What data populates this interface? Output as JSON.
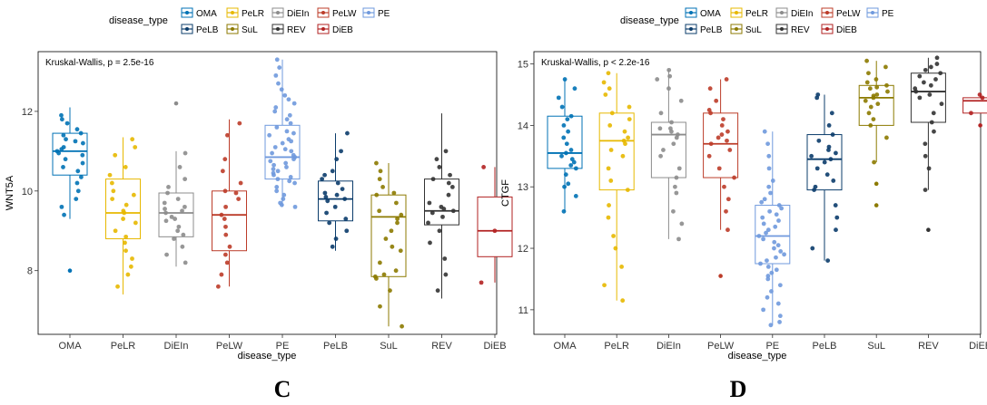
{
  "colors": {
    "OMA": "#0072B5",
    "PeLR": "#E7B800",
    "DiEIn": "#8C8C8C",
    "PeLW": "#BC3C29",
    "PE": "#6F99DD",
    "PeLB": "#0B3C6B",
    "SuL": "#8C7A00",
    "REV": "#333333",
    "DiEB": "#B22222"
  },
  "chart_data": [
    {
      "type": "box",
      "panel_label": "C",
      "title": "",
      "xlabel": "disease_type",
      "ylabel": "WNT5A",
      "ylim": [
        6.4,
        13.5
      ],
      "yticks": [
        8,
        10,
        12
      ],
      "annotation": "Kruskal-Wallis, p = 2.5e-16",
      "legend_title": "disease_type",
      "legend_position": "top",
      "categories": [
        "OMA",
        "PeLR",
        "DiEIn",
        "PeLW",
        "PE",
        "PeLB",
        "SuL",
        "REV",
        "DiEB"
      ],
      "boxes": [
        {
          "category": "OMA",
          "min": 9.3,
          "q1": 10.4,
          "median": 11.0,
          "q3": 11.45,
          "max": 12.1
        },
        {
          "category": "PeLR",
          "min": 7.4,
          "q1": 8.8,
          "median": 9.45,
          "q3": 10.3,
          "max": 11.35
        },
        {
          "category": "DiEIn",
          "min": 8.1,
          "q1": 8.85,
          "median": 9.45,
          "q3": 9.95,
          "max": 11.0
        },
        {
          "category": "PeLW",
          "min": 7.6,
          "q1": 8.5,
          "median": 9.4,
          "q3": 10.0,
          "max": 11.8
        },
        {
          "category": "PE",
          "min": 9.6,
          "q1": 10.3,
          "median": 10.85,
          "q3": 11.65,
          "max": 13.3
        },
        {
          "category": "PeLB",
          "min": 8.5,
          "q1": 9.25,
          "median": 9.8,
          "q3": 10.25,
          "max": 11.45
        },
        {
          "category": "SuL",
          "min": 6.6,
          "q1": 7.85,
          "median": 9.35,
          "q3": 9.9,
          "max": 10.7
        },
        {
          "category": "REV",
          "min": 7.3,
          "q1": 9.15,
          "median": 9.5,
          "q3": 10.3,
          "max": 11.95
        },
        {
          "category": "DiEB",
          "min": 7.7,
          "q1": 8.35,
          "median": 9.0,
          "q3": 9.85,
          "max": 10.6
        }
      ],
      "outliers": [
        {
          "category": "OMA",
          "value": 8.0
        },
        {
          "category": "DiEIn",
          "value": 12.2
        }
      ],
      "points": [
        {
          "category": "OMA",
          "values": [
            11.9,
            11.7,
            11.55,
            11.4,
            11.3,
            11.25,
            11.2,
            11.1,
            11.05,
            11.0,
            10.95,
            10.9,
            10.8,
            10.7,
            10.6,
            10.5,
            10.35,
            10.2,
            10.0,
            9.8,
            9.6,
            9.4,
            11.45,
            11.8
          ]
        },
        {
          "category": "PeLR",
          "values": [
            11.3,
            11.1,
            10.6,
            10.4,
            10.2,
            10.0,
            9.8,
            9.65,
            9.5,
            9.45,
            9.3,
            9.2,
            9.0,
            8.85,
            8.7,
            8.5,
            8.3,
            8.1,
            7.9,
            7.6,
            10.9,
            9.9
          ]
        },
        {
          "category": "DiEIn",
          "values": [
            10.95,
            10.6,
            10.3,
            10.1,
            9.95,
            9.8,
            9.7,
            9.6,
            9.5,
            9.45,
            9.35,
            9.25,
            9.1,
            9.0,
            8.9,
            8.8,
            8.6,
            8.4,
            8.2,
            9.55,
            9.3
          ]
        },
        {
          "category": "PeLW",
          "values": [
            11.7,
            11.4,
            10.8,
            10.5,
            10.2,
            10.0,
            9.8,
            9.6,
            9.4,
            9.3,
            9.1,
            8.9,
            8.6,
            8.4,
            8.2,
            7.9,
            7.6,
            9.95
          ]
        },
        {
          "category": "PE",
          "values": [
            13.3,
            13.1,
            12.9,
            12.7,
            12.55,
            12.4,
            12.3,
            12.2,
            12.1,
            12.0,
            11.9,
            11.8,
            11.7,
            11.6,
            11.5,
            11.45,
            11.4,
            11.3,
            11.2,
            11.1,
            11.05,
            11.0,
            10.95,
            10.9,
            10.85,
            10.8,
            10.75,
            10.7,
            10.6,
            10.55,
            10.5,
            10.45,
            10.4,
            10.35,
            10.3,
            10.25,
            10.2,
            10.1,
            10.0,
            9.9,
            9.8,
            9.7,
            9.65,
            9.6,
            11.25,
            10.65
          ]
        },
        {
          "category": "PeLB",
          "values": [
            11.45,
            11.0,
            10.8,
            10.5,
            10.3,
            10.2,
            10.05,
            9.95,
            9.85,
            9.8,
            9.75,
            9.6,
            9.45,
            9.3,
            9.2,
            9.0,
            8.8,
            8.6,
            10.4,
            9.9
          ]
        },
        {
          "category": "SuL",
          "values": [
            10.7,
            10.5,
            10.3,
            10.1,
            9.9,
            9.7,
            9.5,
            9.4,
            9.3,
            9.2,
            9.0,
            8.8,
            8.5,
            8.2,
            8.0,
            7.9,
            7.85,
            7.8,
            7.5,
            7.1,
            6.6,
            9.95,
            8.6
          ]
        },
        {
          "category": "REV",
          "values": [
            11.0,
            10.8,
            10.6,
            10.4,
            10.3,
            10.1,
            9.9,
            9.7,
            9.6,
            9.55,
            9.5,
            9.45,
            9.35,
            9.2,
            9.0,
            8.7,
            8.3,
            7.9,
            7.5,
            10.2
          ]
        },
        {
          "category": "DiEB",
          "values": [
            10.6,
            9.0,
            7.7
          ]
        }
      ]
    },
    {
      "type": "box",
      "panel_label": "D",
      "title": "",
      "xlabel": "disease_type",
      "ylabel": "CTGF",
      "ylim": [
        10.6,
        15.2
      ],
      "yticks": [
        11,
        12,
        13,
        14,
        15
      ],
      "annotation": "Kruskal-Wallis, p < 2.2e-16",
      "legend_title": "disease_type",
      "legend_position": "top",
      "categories": [
        "OMA",
        "PeLR",
        "DiEIn",
        "PeLW",
        "PE",
        "PeLB",
        "SuL",
        "REV",
        "DiEB"
      ],
      "boxes": [
        {
          "category": "OMA",
          "min": 12.6,
          "q1": 13.3,
          "median": 13.55,
          "q3": 14.15,
          "max": 14.75
        },
        {
          "category": "PeLR",
          "min": 11.15,
          "q1": 12.95,
          "median": 13.75,
          "q3": 14.2,
          "max": 14.85
        },
        {
          "category": "DiEIn",
          "min": 12.15,
          "q1": 13.15,
          "median": 13.85,
          "q3": 14.05,
          "max": 14.9
        },
        {
          "category": "PeLW",
          "min": 12.3,
          "q1": 13.15,
          "median": 13.7,
          "q3": 14.2,
          "max": 14.75
        },
        {
          "category": "PE",
          "min": 10.75,
          "q1": 11.75,
          "median": 12.2,
          "q3": 12.7,
          "max": 13.9
        },
        {
          "category": "PeLB",
          "min": 11.8,
          "q1": 12.95,
          "median": 13.45,
          "q3": 13.85,
          "max": 14.5
        },
        {
          "category": "SuL",
          "min": 13.4,
          "q1": 14.0,
          "median": 14.45,
          "q3": 14.65,
          "max": 15.05
        },
        {
          "category": "REV",
          "min": 12.95,
          "q1": 14.05,
          "median": 14.55,
          "q3": 14.85,
          "max": 15.1
        },
        {
          "category": "DiEB",
          "min": 14.2,
          "q1": 14.2,
          "median": 14.4,
          "q3": 14.45,
          "max": 14.5
        }
      ],
      "outliers": [
        {
          "category": "PeLW",
          "value": 11.55
        },
        {
          "category": "SuL",
          "value": 12.7
        },
        {
          "category": "SuL",
          "value": 13.05
        },
        {
          "category": "REV",
          "value": 12.3
        },
        {
          "category": "DiEB",
          "value": 14.0
        }
      ],
      "points": [
        {
          "category": "OMA",
          "values": [
            14.75,
            14.6,
            14.3,
            14.15,
            14.1,
            14.0,
            13.9,
            13.8,
            13.7,
            13.6,
            13.55,
            13.5,
            13.45,
            13.4,
            13.35,
            13.3,
            13.2,
            13.0,
            12.85,
            12.6,
            14.45,
            13.05
          ]
        },
        {
          "category": "PeLR",
          "values": [
            14.85,
            14.7,
            14.5,
            14.3,
            14.2,
            14.1,
            14.0,
            13.9,
            13.8,
            13.75,
            13.7,
            13.5,
            13.3,
            13.1,
            12.95,
            12.7,
            12.5,
            12.2,
            12.0,
            11.7,
            11.4,
            11.15,
            14.6,
            13.6
          ]
        },
        {
          "category": "DiEIn",
          "values": [
            14.9,
            14.8,
            14.6,
            14.4,
            14.2,
            14.05,
            13.95,
            13.9,
            13.85,
            13.8,
            13.7,
            13.6,
            13.5,
            13.3,
            13.15,
            13.0,
            12.9,
            12.6,
            12.4,
            12.15,
            14.75,
            13.95
          ]
        },
        {
          "category": "PeLW",
          "values": [
            14.75,
            14.6,
            14.4,
            14.2,
            14.1,
            14.0,
            13.9,
            13.8,
            13.75,
            13.7,
            13.6,
            13.5,
            13.3,
            13.15,
            13.0,
            12.8,
            12.6,
            12.3,
            14.25,
            13.85
          ]
        },
        {
          "category": "PE",
          "values": [
            13.9,
            13.7,
            13.5,
            13.3,
            13.1,
            13.0,
            12.9,
            12.8,
            12.75,
            12.7,
            12.6,
            12.5,
            12.45,
            12.4,
            12.35,
            12.3,
            12.25,
            12.2,
            12.15,
            12.1,
            12.05,
            12.0,
            11.95,
            11.9,
            11.85,
            11.8,
            11.75,
            11.7,
            11.6,
            11.5,
            11.4,
            11.3,
            11.2,
            11.1,
            11.0,
            10.9,
            10.8,
            10.75,
            12.55,
            12.65,
            11.65,
            11.55
          ]
        },
        {
          "category": "PeLB",
          "values": [
            14.5,
            14.45,
            14.2,
            14.0,
            13.85,
            13.75,
            13.65,
            13.55,
            13.5,
            13.45,
            13.4,
            13.3,
            13.2,
            13.1,
            12.95,
            12.7,
            12.5,
            12.3,
            12.0,
            11.8,
            13.6,
            13.0
          ]
        },
        {
          "category": "SuL",
          "values": [
            15.05,
            14.95,
            14.85,
            14.75,
            14.7,
            14.65,
            14.6,
            14.55,
            14.5,
            14.45,
            14.4,
            14.35,
            14.3,
            14.2,
            14.1,
            14.0,
            13.8,
            13.4,
            14.62,
            14.48
          ]
        },
        {
          "category": "REV",
          "values": [
            15.1,
            15.0,
            14.95,
            14.9,
            14.85,
            14.8,
            14.75,
            14.7,
            14.6,
            14.55,
            14.5,
            14.45,
            14.35,
            14.2,
            14.05,
            13.9,
            13.7,
            13.5,
            13.3,
            12.95,
            14.65
          ]
        },
        {
          "category": "DiEB",
          "values": [
            14.5,
            14.45,
            14.4,
            14.2
          ]
        }
      ]
    }
  ]
}
